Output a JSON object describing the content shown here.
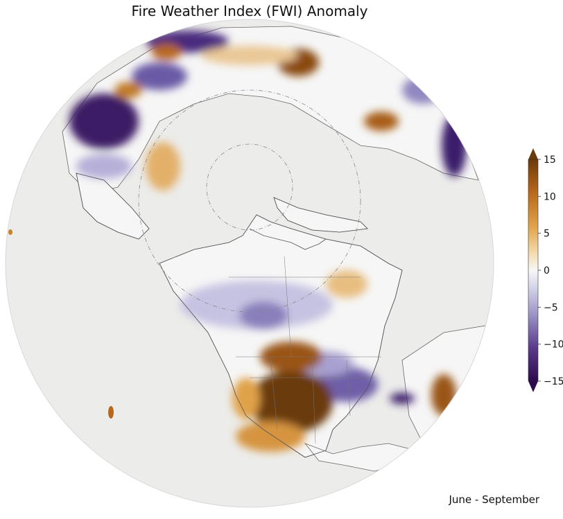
{
  "title": "Fire Weather Index (FWI) Anomaly",
  "period": "June - September",
  "colorbar": {
    "min": -15,
    "max": 15,
    "ticks": [
      15,
      10,
      5,
      0,
      -5,
      -10,
      -15
    ],
    "tick_labels": [
      "15",
      "10",
      "5",
      "0",
      "−5",
      "−10",
      "−15"
    ],
    "colors": {
      "neg_extreme": "#2d0a4e",
      "neg_strong": "#5a3a8c",
      "neg_mid": "#9b94c6",
      "neg_light": "#d8d8ec",
      "neutral": "#f7f7f7",
      "pos_light": "#f5deb3",
      "pos_mid": "#e0a248",
      "pos_strong": "#b8681a",
      "pos_extreme": "#6b3a0a"
    }
  },
  "map": {
    "ocean_color": "#ececea",
    "coast_color": "#555555"
  }
}
